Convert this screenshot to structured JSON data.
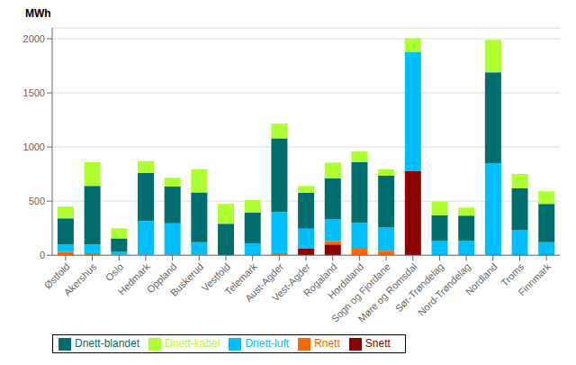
{
  "chart_data": {
    "type": "bar",
    "stacked": true,
    "ylabel": "MWh",
    "categories": [
      "Østfold",
      "Akershus",
      "Oslo",
      "Hedmark",
      "Oppland",
      "Buskerud",
      "Vestfold",
      "Telemark",
      "Aust-Agder",
      "Vest-Agder",
      "Rogaland",
      "Hordaland",
      "Sogn og Fjordane",
      "Møre og Romsdal",
      "Sør-Trøndelag",
      "Nord-Trøndelag",
      "Nordland",
      "Troms",
      "Finnmark"
    ],
    "series": [
      {
        "name": "Snett",
        "color": "#8B0000",
        "values": [
          0,
          0,
          0,
          0,
          0,
          0,
          0,
          0,
          0,
          60,
          100,
          0,
          0,
          780,
          0,
          0,
          0,
          0,
          0
        ]
      },
      {
        "name": "Rnett",
        "color": "#FF6600",
        "values": [
          30,
          10,
          5,
          5,
          5,
          5,
          0,
          0,
          10,
          0,
          30,
          60,
          40,
          0,
          0,
          0,
          0,
          0,
          0
        ]
      },
      {
        "name": "Dnett-luft",
        "color": "#00BFFF",
        "values": [
          70,
          90,
          30,
          310,
          290,
          115,
          0,
          110,
          390,
          185,
          200,
          240,
          215,
          1100,
          130,
          130,
          850,
          235,
          120
        ]
      },
      {
        "name": "Dnett-blandet",
        "color": "#006E6E",
        "values": [
          240,
          540,
          120,
          445,
          340,
          460,
          290,
          285,
          680,
          330,
          380,
          560,
          480,
          0,
          240,
          235,
          840,
          385,
          355
        ]
      },
      {
        "name": "Dnett-kabel",
        "color": "#ADFF2F",
        "values": [
          110,
          220,
          95,
          110,
          80,
          215,
          185,
          115,
          135,
          65,
          145,
          100,
          60,
          125,
          125,
          75,
          300,
          130,
          115
        ]
      }
    ],
    "ylim": [
      0,
      2100
    ],
    "yticks": [
      0,
      500,
      1000,
      1500,
      2000
    ],
    "grid": true,
    "legend": "lower left"
  }
}
